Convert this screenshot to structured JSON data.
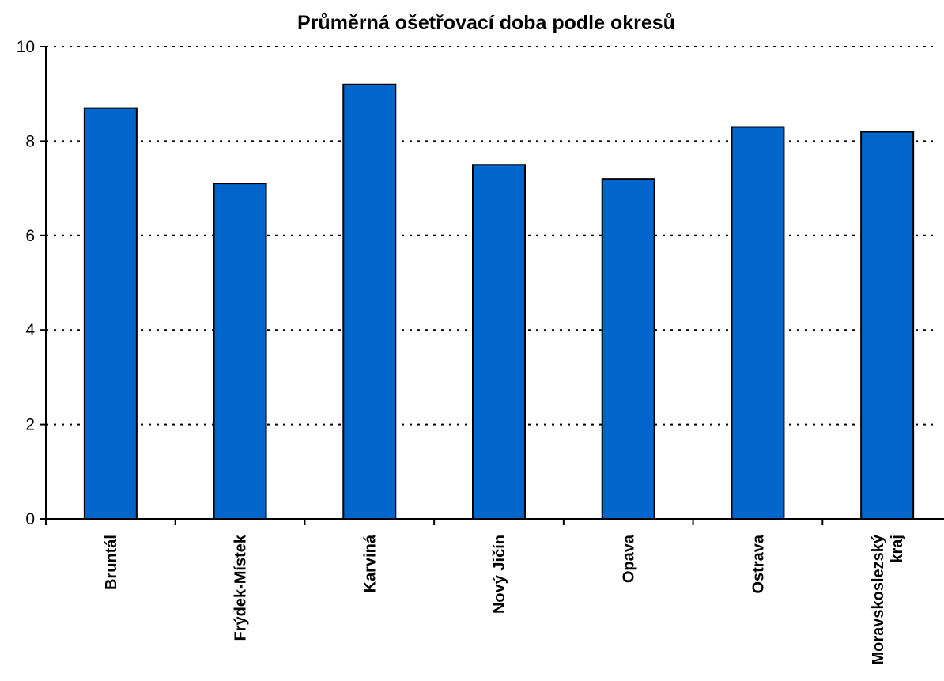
{
  "chart_data": {
    "type": "bar",
    "title": "Průměrná ošetřovací doba podle okresů",
    "xlabel": "",
    "ylabel": "",
    "categories": [
      [
        "Bruntál"
      ],
      [
        "Frýdek-Místek"
      ],
      [
        "Karviná"
      ],
      [
        "Nový Jičín"
      ],
      [
        "Opava"
      ],
      [
        "Ostrava"
      ],
      [
        "Moravskoslezský",
        "kraj"
      ]
    ],
    "values": [
      8.7,
      7.1,
      9.2,
      7.5,
      7.2,
      8.3,
      8.2
    ],
    "ylim": [
      0,
      10
    ],
    "yticks": [
      0,
      2,
      4,
      6,
      8,
      10
    ],
    "grid": "horizontal dotted",
    "legend": "none",
    "bar_color": "#0066CC"
  }
}
